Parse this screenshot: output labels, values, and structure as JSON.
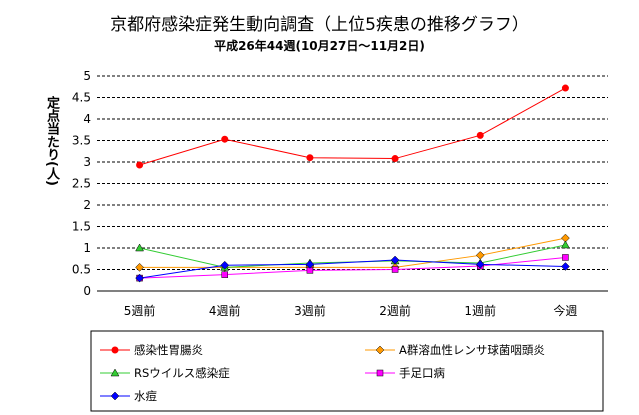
{
  "chart_data": {
    "type": "line",
    "title": "京都府感染症発生動向調査（上位5疾患の推移グラフ）",
    "subtitle": "平成26年44週(10月27日～11月2日)",
    "ylabel": "定点当たり(人)",
    "xlabel": "",
    "categories": [
      "5週前",
      "4週前",
      "3週前",
      "2週前",
      "1週前",
      "今週"
    ],
    "ylim": [
      0,
      5
    ],
    "yticks": [
      "0",
      "0.5",
      "1",
      "1.5",
      "2",
      "2.5",
      "3",
      "3.5",
      "4",
      "4.5",
      "5"
    ],
    "grid": true,
    "legend_position": "bottom",
    "series": [
      {
        "name": "感染性胃腸炎",
        "color": "#ff0000",
        "marker": "circle",
        "values": [
          2.93,
          3.53,
          3.1,
          3.08,
          3.62,
          4.72
        ]
      },
      {
        "name": "A群溶血性レンサ球菌咽頭炎",
        "color": "#ff9900",
        "marker": "diamond",
        "values": [
          0.55,
          0.55,
          0.55,
          0.55,
          0.83,
          1.23
        ]
      },
      {
        "name": "RSウイルス感染症",
        "color": "#33cc33",
        "marker": "triangle",
        "values": [
          1.0,
          0.55,
          0.65,
          0.7,
          0.65,
          1.07
        ]
      },
      {
        "name": "手足口病",
        "color": "#ff00ff",
        "marker": "square",
        "values": [
          0.3,
          0.38,
          0.48,
          0.5,
          0.58,
          0.78
        ]
      },
      {
        "name": "水痘",
        "color": "#0000ff",
        "marker": "diamond",
        "values": [
          0.3,
          0.6,
          0.62,
          0.72,
          0.62,
          0.57
        ]
      }
    ]
  }
}
